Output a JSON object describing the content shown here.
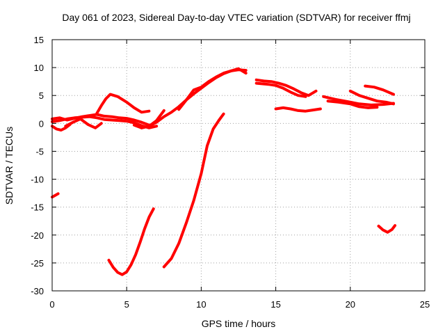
{
  "chart_data": {
    "type": "line",
    "title": "Day 061 of 2023, Sidereal Day-to-day VTEC variation (SDTVAR) for receiver ffmj",
    "xlabel": "GPS time / hours",
    "ylabel": "SDTVAR / TECUs",
    "xlim": [
      0,
      25
    ],
    "ylim": [
      -30,
      15
    ],
    "xticks": [
      0,
      5,
      10,
      15,
      20,
      25
    ],
    "yticks": [
      -30,
      -25,
      -20,
      -15,
      -10,
      -5,
      0,
      5,
      10,
      15
    ],
    "grid": true,
    "color": "#ff0000",
    "series": [
      {
        "name": "s1",
        "x": [
          0.0,
          0.5,
          1.0,
          1.5,
          2.0,
          2.5,
          3.0,
          3.5,
          4.0,
          4.5,
          5.0,
          5.5,
          6.0,
          6.5
        ],
        "y": [
          0.8,
          1.0,
          0.6,
          0.9,
          1.2,
          1.4,
          1.6,
          1.3,
          1.2,
          1.0,
          0.9,
          0.6,
          0.2,
          -0.3
        ]
      },
      {
        "name": "s2",
        "x": [
          0.0,
          0.5,
          1.0,
          1.5,
          2.0,
          2.5,
          3.0,
          3.5,
          4.0,
          4.5,
          5.0,
          5.5,
          6.0,
          6.5,
          7.0
        ],
        "y": [
          0.3,
          0.5,
          0.8,
          1.0,
          1.1,
          1.2,
          1.0,
          0.7,
          0.6,
          0.5,
          0.4,
          0.1,
          -0.4,
          -0.8,
          -0.5
        ]
      },
      {
        "name": "s3",
        "x": [
          0.0,
          0.3,
          0.6,
          0.9,
          1.2
        ],
        "y": [
          -0.5,
          -1.0,
          -1.2,
          -0.8,
          -0.2
        ]
      },
      {
        "name": "s4",
        "x": [
          0.9,
          1.4,
          1.9,
          2.4,
          2.9,
          3.3
        ],
        "y": [
          -0.5,
          0.2,
          0.8,
          -0.2,
          -0.8,
          0.0
        ]
      },
      {
        "name": "s5",
        "x": [
          3.0,
          3.3,
          3.6,
          3.9,
          4.4,
          5.0,
          5.5,
          6.0,
          6.5
        ],
        "y": [
          1.8,
          3.2,
          4.4,
          5.2,
          4.8,
          3.8,
          2.8,
          2.0,
          2.2
        ]
      },
      {
        "name": "s6",
        "x": [
          0.0,
          0.4
        ],
        "y": [
          -13.2,
          -12.6
        ]
      },
      {
        "name": "s7",
        "x": [
          3.8,
          4.1,
          4.4,
          4.7,
          5.0,
          5.3,
          5.6,
          5.9,
          6.2,
          6.5,
          6.8
        ],
        "y": [
          -24.5,
          -25.8,
          -26.7,
          -27.1,
          -26.6,
          -25.3,
          -23.5,
          -21.3,
          -18.9,
          -16.8,
          -15.3
        ]
      },
      {
        "name": "s8",
        "x": [
          7.5,
          8.0,
          8.5,
          9.0,
          9.5,
          10.0,
          10.4,
          10.8,
          11.2,
          11.5
        ],
        "y": [
          -25.7,
          -24.2,
          -21.5,
          -17.8,
          -13.8,
          -9.0,
          -4.0,
          -1.0,
          0.6,
          1.7
        ]
      },
      {
        "name": "s9",
        "x": [
          6.0,
          6.5,
          7.0,
          7.5,
          8.0,
          8.5,
          9.0,
          9.5,
          10.0,
          10.5,
          11.0,
          11.5,
          12.0,
          12.5,
          13.0
        ],
        "y": [
          -0.8,
          -0.5,
          0.2,
          1.2,
          2.0,
          3.0,
          4.2,
          5.3,
          6.3,
          7.3,
          8.2,
          8.9,
          9.4,
          9.6,
          9.5
        ]
      },
      {
        "name": "s10",
        "x": [
          5.5,
          6.0,
          6.5,
          7.0,
          7.5
        ],
        "y": [
          -0.3,
          -0.8,
          -0.5,
          0.5,
          2.3
        ]
      },
      {
        "name": "s11",
        "x": [
          8.5,
          9.0,
          9.5,
          10.0,
          10.5,
          11.0,
          11.5,
          12.0,
          12.5,
          13.0
        ],
        "y": [
          2.5,
          4.2,
          6.0,
          6.5,
          7.5,
          8.3,
          9.0,
          9.4,
          9.8,
          9.0
        ]
      },
      {
        "name": "s12",
        "x": [
          13.7,
          14.2,
          14.7,
          15.2,
          15.7,
          16.2,
          16.7,
          17.2,
          17.7
        ],
        "y": [
          7.8,
          7.6,
          7.5,
          7.2,
          6.8,
          6.2,
          5.5,
          5.0,
          5.8
        ]
      },
      {
        "name": "s13",
        "x": [
          13.7,
          14.5,
          15.0,
          15.5,
          16.0,
          16.5,
          17.0
        ],
        "y": [
          7.2,
          7.0,
          6.8,
          6.3,
          5.6,
          5.0,
          4.8
        ]
      },
      {
        "name": "s14",
        "x": [
          15.0,
          15.5,
          16.0,
          16.5,
          17.0,
          17.5,
          18.0
        ],
        "y": [
          2.6,
          2.8,
          2.6,
          2.3,
          2.2,
          2.4,
          2.6
        ]
      },
      {
        "name": "s15",
        "x": [
          18.2,
          19.0,
          19.8,
          20.6,
          21.4,
          22.2,
          22.9
        ],
        "y": [
          4.8,
          4.3,
          3.9,
          3.5,
          3.3,
          3.4,
          3.6
        ]
      },
      {
        "name": "s16",
        "x": [
          18.5,
          19.2,
          20.0,
          20.6,
          21.2,
          21.8
        ],
        "y": [
          4.0,
          3.8,
          3.5,
          3.0,
          2.8,
          2.9
        ]
      },
      {
        "name": "s17",
        "x": [
          20.0,
          20.6,
          21.2,
          21.8,
          22.4,
          22.9
        ],
        "y": [
          5.8,
          5.0,
          4.5,
          4.0,
          3.8,
          3.5
        ]
      },
      {
        "name": "s18",
        "x": [
          21.0,
          21.6,
          22.2,
          22.9
        ],
        "y": [
          6.7,
          6.5,
          6.0,
          5.2
        ]
      },
      {
        "name": "s19",
        "x": [
          21.9,
          22.2,
          22.5,
          22.8,
          23.0
        ],
        "y": [
          -18.4,
          -19.1,
          -19.5,
          -19.0,
          -18.3
        ]
      }
    ]
  }
}
